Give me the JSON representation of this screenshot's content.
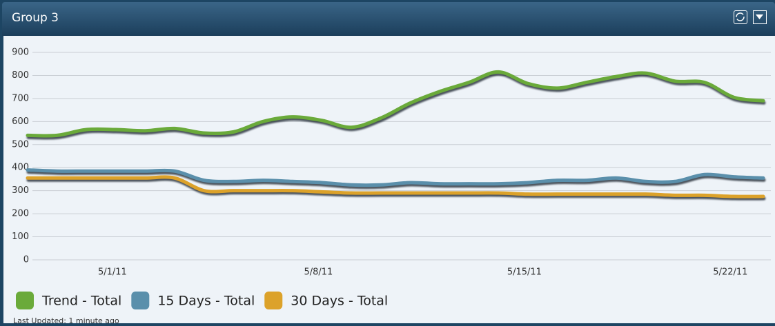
{
  "chart_data": {
    "type": "line",
    "title": "Group 3",
    "x": [
      "4/28/11",
      "4/29/11",
      "4/30/11",
      "5/1/11",
      "5/2/11",
      "5/3/11",
      "5/4/11",
      "5/5/11",
      "5/6/11",
      "5/7/11",
      "5/8/11",
      "5/9/11",
      "5/10/11",
      "5/11/11",
      "5/12/11",
      "5/13/11",
      "5/14/11",
      "5/15/11",
      "5/16/11",
      "5/17/11",
      "5/18/11",
      "5/19/11",
      "5/20/11",
      "5/21/11",
      "5/22/11",
      "5/23/11"
    ],
    "series": [
      {
        "name": "Trend - Total",
        "color": "#6aaa3a",
        "values": [
          540,
          540,
          565,
          565,
          560,
          570,
          550,
          555,
          600,
          620,
          605,
          575,
          615,
          680,
          730,
          770,
          815,
          765,
          745,
          770,
          795,
          810,
          775,
          770,
          705,
          690
        ]
      },
      {
        "name": "15 Days - Total",
        "color": "#5a8fab",
        "values": [
          390,
          385,
          385,
          385,
          385,
          385,
          345,
          340,
          345,
          340,
          335,
          325,
          325,
          335,
          330,
          330,
          330,
          335,
          345,
          345,
          355,
          340,
          340,
          370,
          360,
          355
        ]
      },
      {
        "name": "30 Days - Total",
        "color": "#dca22a",
        "values": [
          355,
          355,
          355,
          355,
          355,
          355,
          300,
          300,
          300,
          300,
          295,
          290,
          290,
          290,
          290,
          290,
          290,
          285,
          285,
          285,
          285,
          285,
          280,
          280,
          275,
          275
        ]
      }
    ],
    "ylim": [
      0,
      900
    ],
    "yticks": [
      0,
      100,
      200,
      300,
      400,
      500,
      600,
      700,
      800,
      900
    ],
    "xticks": [
      "5/1/11",
      "5/8/11",
      "5/15/11",
      "5/22/11"
    ],
    "grid": true,
    "legend": "bottom",
    "footer": "Last Updated: 1 minute ago"
  }
}
